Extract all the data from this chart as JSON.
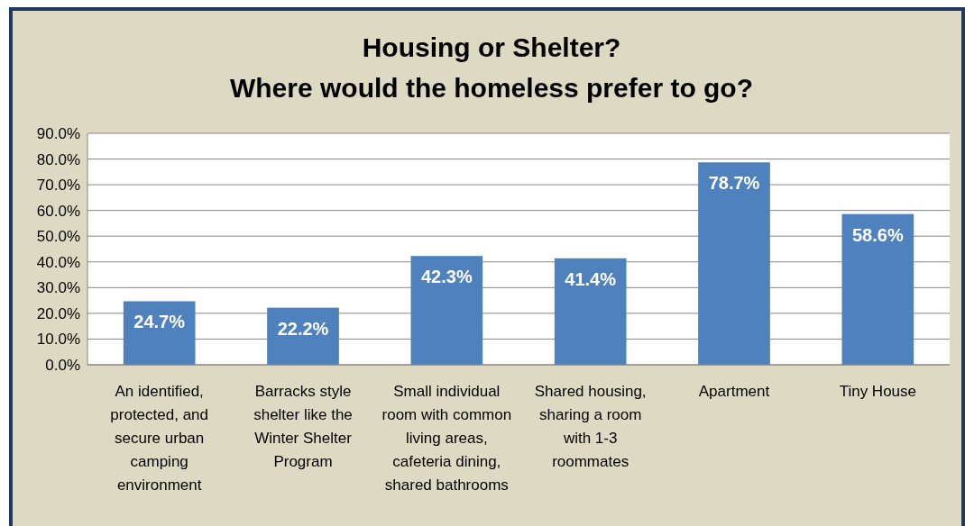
{
  "chart_data": {
    "type": "bar",
    "title": "Housing or Shelter?\nWhere would the homeless prefer to go?",
    "categories": [
      "An identified, protected, and secure urban camping environment",
      "Barracks style shelter like the Winter Shelter Program",
      "Small individual room with common living areas, cafeteria dining, shared bathrooms",
      "Shared housing, sharing a room with 1-3 roommates",
      "Apartment",
      "Tiny House"
    ],
    "values": [
      24.7,
      22.2,
      42.3,
      41.4,
      78.7,
      58.6
    ],
    "value_labels": [
      "24.7%",
      "22.2%",
      "42.3%",
      "41.4%",
      "78.7%",
      "58.6%"
    ],
    "color": "#4f81bd",
    "ylim": [
      0,
      90
    ],
    "yticks": [
      {
        "value": 0,
        "label": "0.0%"
      },
      {
        "value": 10,
        "label": "10.0%"
      },
      {
        "value": 20,
        "label": "20.0%"
      },
      {
        "value": 30,
        "label": "30.0%"
      },
      {
        "value": 40,
        "label": "40.0%"
      },
      {
        "value": 50,
        "label": "50.0%"
      },
      {
        "value": 60,
        "label": "60.0%"
      },
      {
        "value": 70,
        "label": "70.0%"
      },
      {
        "value": 80,
        "label": "80.0%"
      },
      {
        "value": 90,
        "label": "90.0%"
      }
    ],
    "grid": "y"
  }
}
